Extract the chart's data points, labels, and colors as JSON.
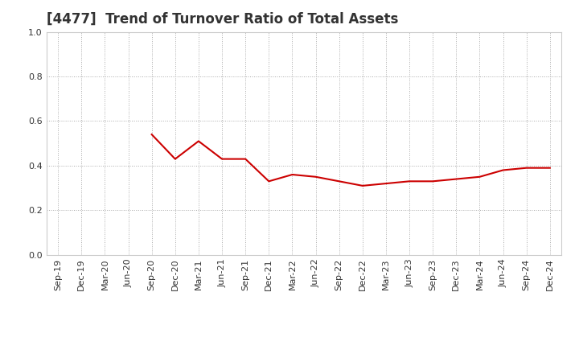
{
  "title": "[4477]  Trend of Turnover Ratio of Total Assets",
  "x_labels": [
    "Sep-19",
    "Dec-19",
    "Mar-20",
    "Jun-20",
    "Sep-20",
    "Dec-20",
    "Mar-21",
    "Jun-21",
    "Sep-21",
    "Dec-21",
    "Mar-22",
    "Jun-22",
    "Sep-22",
    "Dec-22",
    "Mar-23",
    "Jun-23",
    "Sep-23",
    "Dec-23",
    "Mar-24",
    "Jun-24",
    "Sep-24",
    "Dec-24"
  ],
  "data_values": [
    0.54,
    0.43,
    0.51,
    0.43,
    0.43,
    0.33,
    0.36,
    0.35,
    0.33,
    0.31,
    0.32,
    0.33,
    0.33,
    0.34,
    0.35,
    0.38,
    0.39,
    0.39
  ],
  "data_x_indices": [
    4,
    5,
    6,
    7,
    8,
    9,
    10,
    11,
    12,
    13,
    14,
    15,
    16,
    17,
    18,
    19,
    20,
    21
  ],
  "line_color": "#cc0000",
  "ylim": [
    0.0,
    1.0
  ],
  "yticks": [
    0.0,
    0.2,
    0.4,
    0.6,
    0.8,
    1.0
  ],
  "grid_color": "#aaaaaa",
  "background_color": "#ffffff",
  "title_fontsize": 12,
  "tick_fontsize": 8,
  "title_color": "#333333",
  "tick_color": "#333333"
}
